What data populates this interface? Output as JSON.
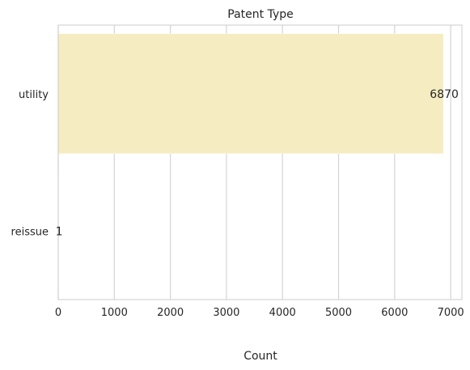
{
  "chart_data": {
    "type": "bar",
    "orientation": "horizontal",
    "title": "Patent Type",
    "xlabel": "Count",
    "ylabel": "",
    "categories": [
      "utility",
      "reissue"
    ],
    "values": [
      6870,
      1
    ],
    "data_labels": [
      "6870",
      "1"
    ],
    "xlim": [
      0,
      7200
    ],
    "xticks": [
      0,
      1000,
      2000,
      3000,
      4000,
      5000,
      6000,
      7000
    ],
    "xtick_labels": [
      "0",
      "1000",
      "2000",
      "3000",
      "4000",
      "5000",
      "6000",
      "7000"
    ],
    "grid": "vertical",
    "colors": {
      "bar": "#f6ecc1",
      "bar_edge": "#ffffff",
      "grid": "#d4d4d4",
      "spine": "#cccccc",
      "text": "#262626"
    }
  }
}
